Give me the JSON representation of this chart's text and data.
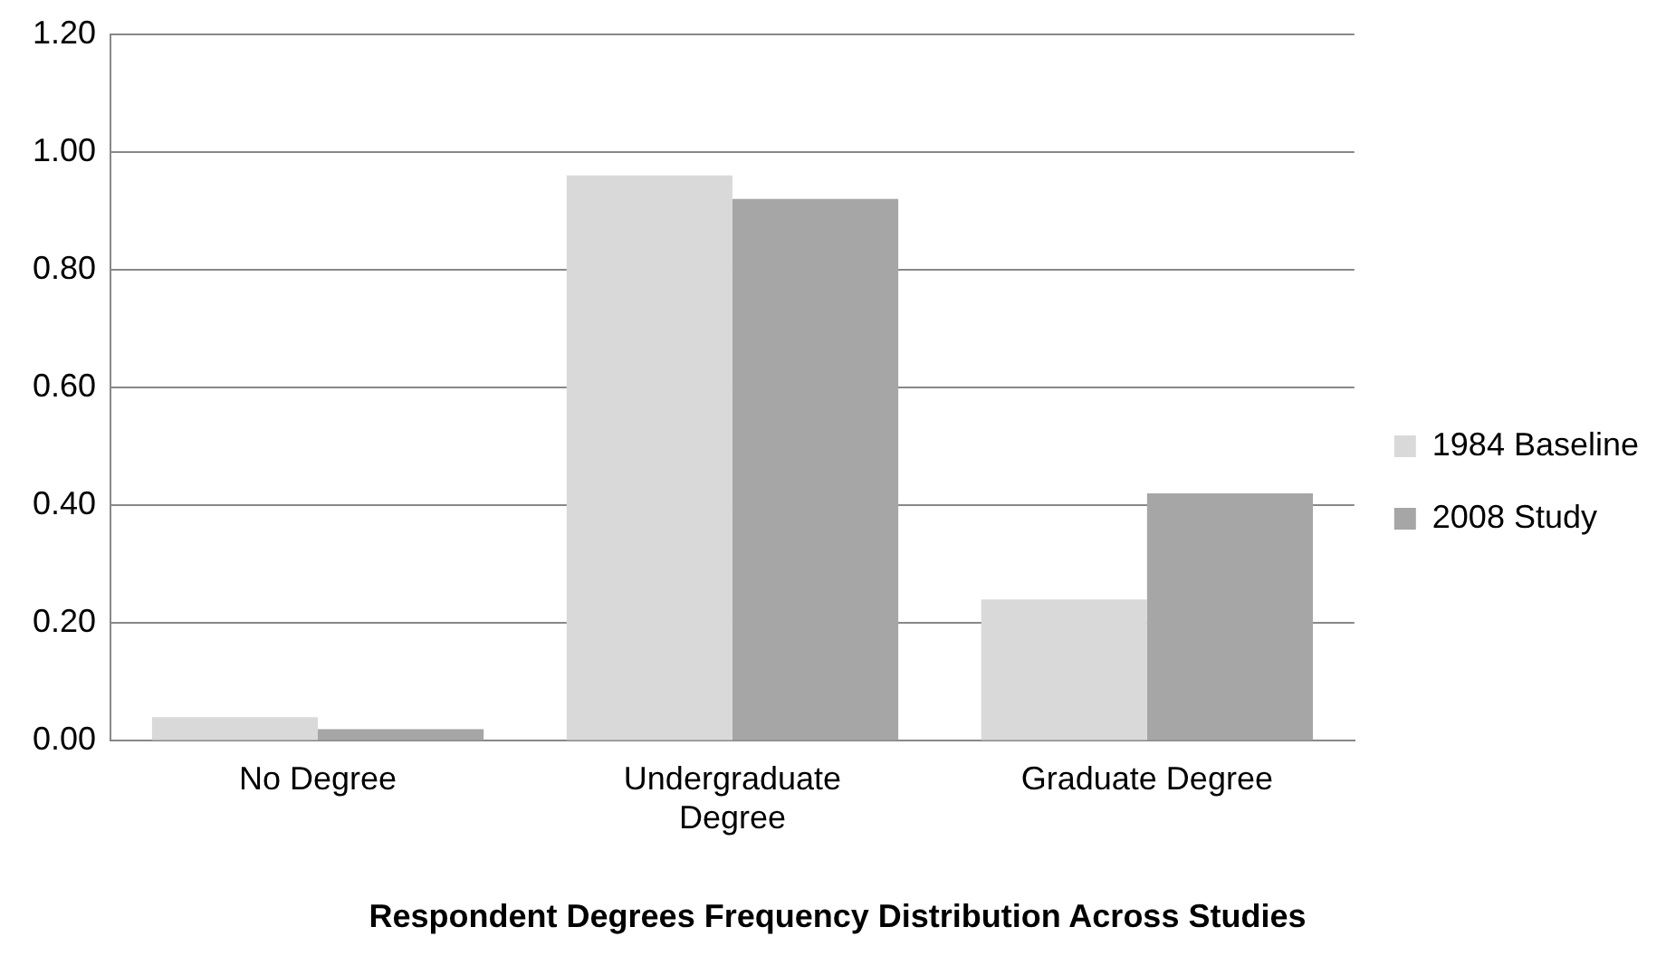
{
  "chart_data": {
    "type": "bar",
    "title": "Respondent Degrees Frequency Distribution Across Studies",
    "categories": [
      "No Degree",
      "Undergraduate Degree",
      "Graduate Degree"
    ],
    "series": [
      {
        "name": "1984 Baseline",
        "color": "#d9d9d9",
        "values": [
          0.04,
          0.96,
          0.24
        ]
      },
      {
        "name": "2008 Study",
        "color": "#a6a6a6",
        "values": [
          0.02,
          0.92,
          0.42
        ]
      }
    ],
    "ylim": [
      0,
      1.2
    ],
    "yticks": [
      {
        "value": 0,
        "label": "0.00"
      },
      {
        "value": 0.2,
        "label": "0.20"
      },
      {
        "value": 0.4,
        "label": "0.40"
      },
      {
        "value": 0.6,
        "label": "0.60"
      },
      {
        "value": 0.8,
        "label": "0.80"
      },
      {
        "value": 1,
        "label": "1.00"
      },
      {
        "value": 1.2,
        "label": "1.20"
      }
    ],
    "grid": "y",
    "legend": "right"
  }
}
